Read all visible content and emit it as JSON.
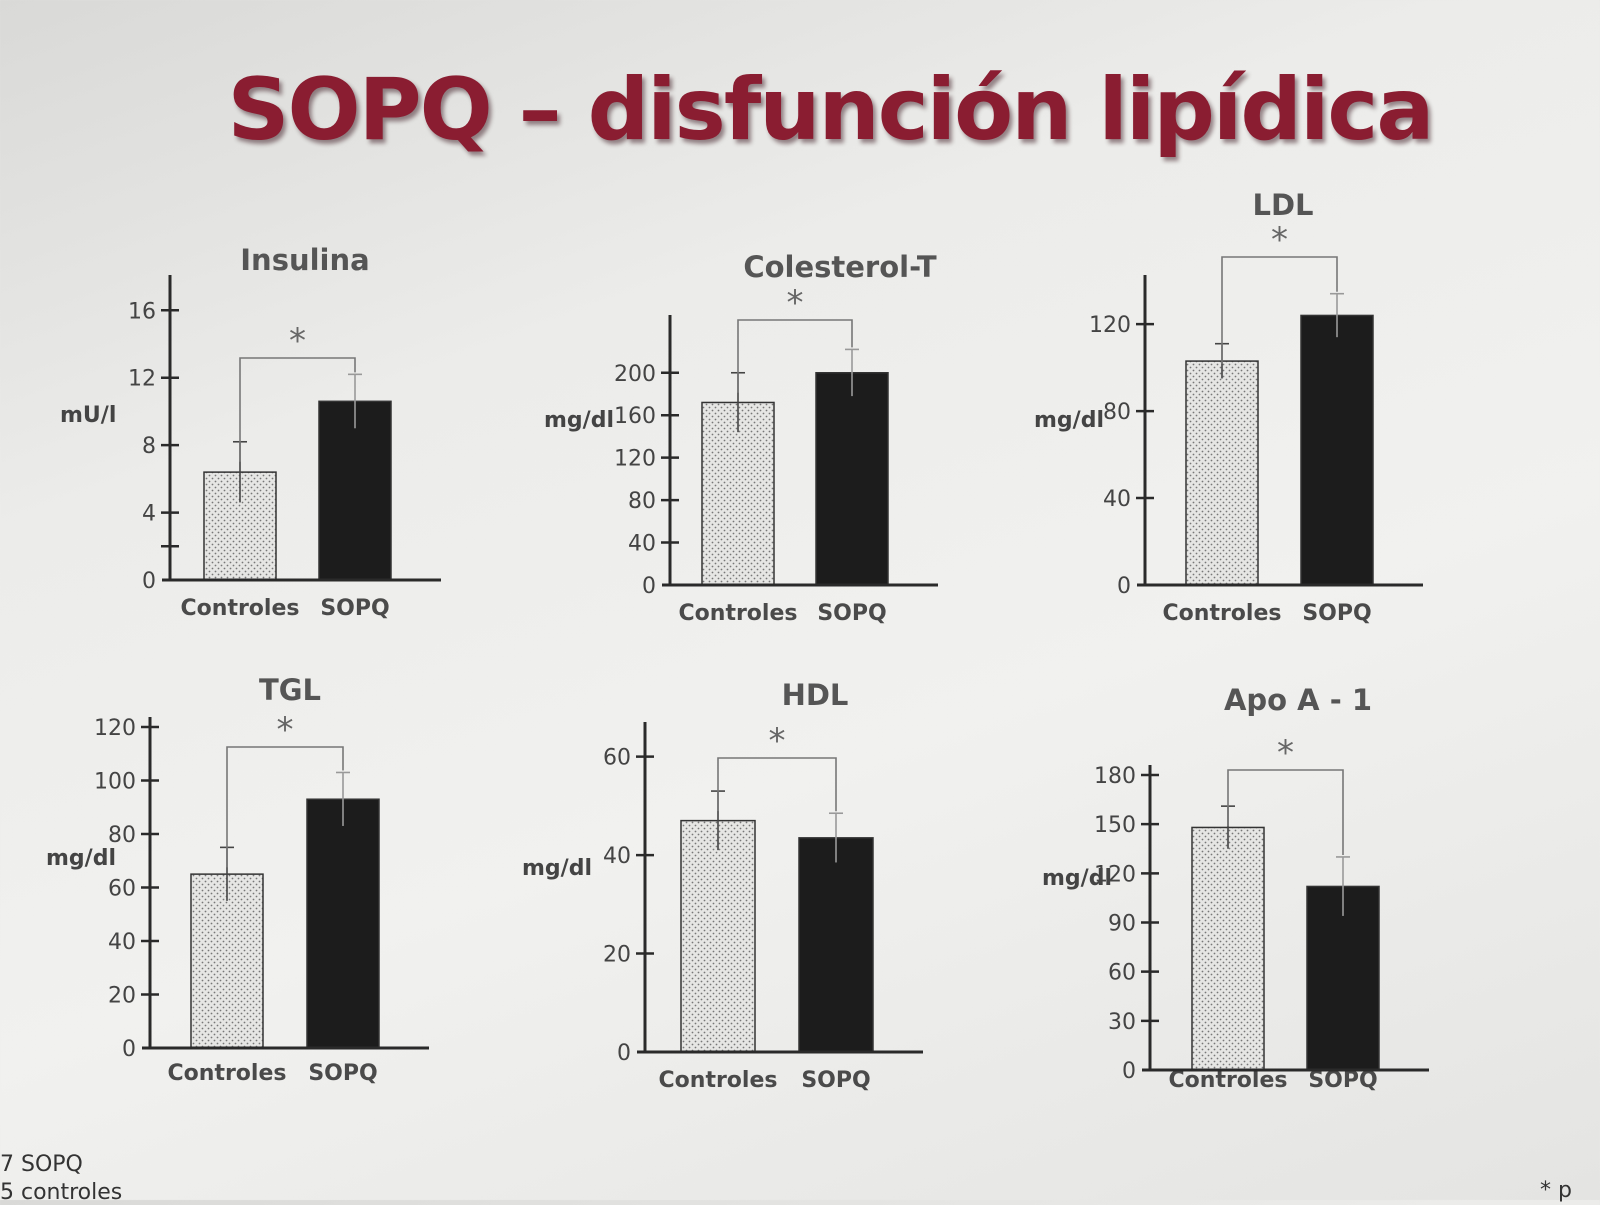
{
  "title": "SOPQ – disfunción lipídica",
  "footnotes": {
    "left1": "7 SOPQ",
    "left2": "5 controles",
    "right": "* p"
  },
  "colors": {
    "title": "#8a1d31",
    "controles_fill": "#e6e6e4",
    "sopq_fill": "#1c1c1c",
    "axis": "#2a2a2a"
  },
  "chart_data": [
    {
      "type": "bar",
      "title": "Insulina",
      "ylabel": "mU/l",
      "categories": [
        "Controles",
        "SOPQ"
      ],
      "values": [
        6.4,
        10.6
      ],
      "errors": [
        1.8,
        1.6
      ],
      "ylim": [
        0,
        17.5
      ],
      "ticks": [
        {
          "v": 0,
          "label": "0"
        },
        {
          "v": 2,
          "label": ""
        },
        {
          "v": 4,
          "label": "4"
        },
        {
          "v": 8,
          "label": "8"
        },
        {
          "v": 12,
          "label": "12"
        },
        {
          "v": 16,
          "label": "16"
        }
      ],
      "significance": "*"
    },
    {
      "type": "bar",
      "title": "Colesterol-T",
      "ylabel": "mg/dl",
      "categories": [
        "Controles",
        "SOPQ"
      ],
      "values": [
        172,
        200
      ],
      "errors": [
        28,
        22
      ],
      "ylim": [
        0,
        245
      ],
      "ticks": [
        {
          "v": 0,
          "label": "0"
        },
        {
          "v": 40,
          "label": "40"
        },
        {
          "v": 80,
          "label": "80"
        },
        {
          "v": 120,
          "label": "120"
        },
        {
          "v": 160,
          "label": "160"
        },
        {
          "v": 200,
          "label": "200"
        }
      ],
      "significance": "*"
    },
    {
      "type": "bar",
      "title": "LDL",
      "ylabel": "mg/dl",
      "categories": [
        "Controles",
        "SOPQ"
      ],
      "values": [
        103,
        124
      ],
      "errors": [
        8,
        10
      ],
      "ylim": [
        0,
        138
      ],
      "ticks": [
        {
          "v": 0,
          "label": "0"
        },
        {
          "v": 40,
          "label": "40"
        },
        {
          "v": 80,
          "label": "80"
        },
        {
          "v": 120,
          "label": "120"
        }
      ],
      "significance": "*"
    },
    {
      "type": "bar",
      "title": "TGL",
      "ylabel": "mg/dl",
      "categories": [
        "Controles",
        "SOPQ"
      ],
      "values": [
        65,
        93
      ],
      "errors": [
        10,
        10
      ],
      "ylim": [
        0,
        120
      ],
      "ticks": [
        {
          "v": 0,
          "label": "0"
        },
        {
          "v": 20,
          "label": "20"
        },
        {
          "v": 40,
          "label": "40"
        },
        {
          "v": 60,
          "label": "60"
        },
        {
          "v": 80,
          "label": "80"
        },
        {
          "v": 100,
          "label": "100"
        },
        {
          "v": 120,
          "label": "120"
        }
      ],
      "significance": "*"
    },
    {
      "type": "bar",
      "title": "HDL",
      "ylabel": "mg/dl",
      "categories": [
        "Controles",
        "SOPQ"
      ],
      "values": [
        47,
        43.5
      ],
      "errors": [
        6,
        5
      ],
      "ylim": [
        0,
        65
      ],
      "ticks": [
        {
          "v": 0,
          "label": "0"
        },
        {
          "v": 20,
          "label": "20"
        },
        {
          "v": 40,
          "label": "40"
        },
        {
          "v": 60,
          "label": "60"
        }
      ],
      "significance": "*"
    },
    {
      "type": "bar",
      "title": "Apo A - 1",
      "ylabel": "mg/dl",
      "categories": [
        "Controles",
        "SOPQ"
      ],
      "values": [
        148,
        112
      ],
      "errors": [
        13,
        18
      ],
      "ylim": [
        0,
        180
      ],
      "ticks": [
        {
          "v": 0,
          "label": "0"
        },
        {
          "v": 30,
          "label": "30"
        },
        {
          "v": 60,
          "label": "60"
        },
        {
          "v": 90,
          "label": "90"
        },
        {
          "v": 120,
          "label": "120"
        },
        {
          "v": 150,
          "label": "150"
        },
        {
          "v": 180,
          "label": "180"
        }
      ],
      "significance": "*"
    }
  ]
}
